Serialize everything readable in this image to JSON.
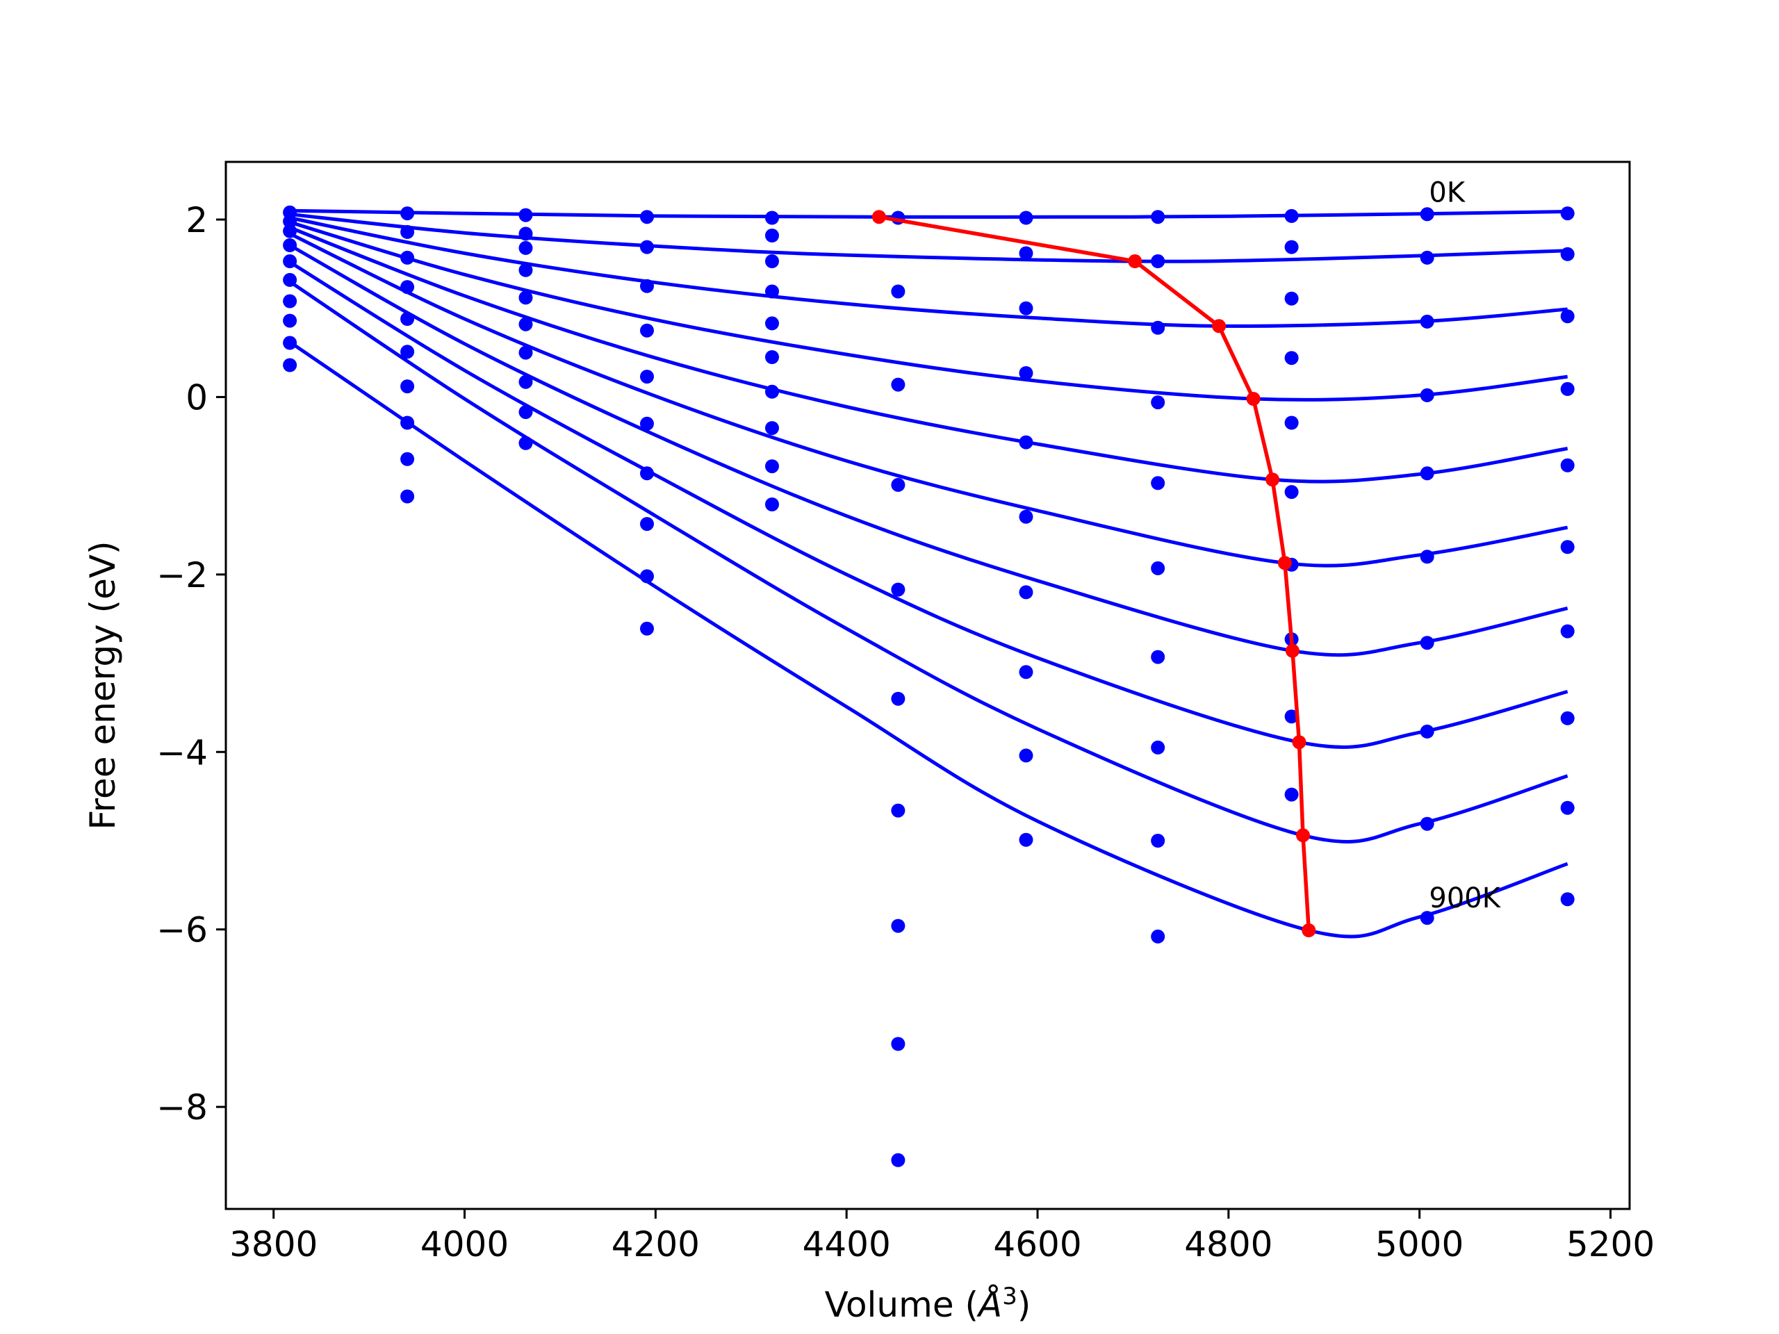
{
  "chart_data": {
    "type": "scatter",
    "title": "",
    "xlabel": "Volume (Å³)",
    "xlabel_main": "Volume (",
    "xlabel_unit": "Å",
    "xlabel_sup": "3",
    "xlabel_close": ")",
    "ylabel": "Free energy (eV)",
    "xlim": [
      3750,
      5220
    ],
    "ylim": [
      -9.15,
      2.65
    ],
    "xticks": [
      3800,
      4000,
      4200,
      4400,
      4600,
      4800,
      5000,
      5200
    ],
    "yticks": [
      -8,
      -6,
      -4,
      -2,
      0,
      2
    ],
    "xtick_labels": [
      "3800",
      "4000",
      "4200",
      "4400",
      "4600",
      "4800",
      "5000",
      "5200"
    ],
    "ytick_labels": [
      "−8",
      "−6",
      "−4",
      "−2",
      "0",
      "2"
    ],
    "grid": false,
    "annotations": [
      {
        "text": "0K",
        "x": 5010,
        "y": 2.2
      },
      {
        "text": "900K",
        "x": 5010,
        "y": -5.75
      }
    ],
    "colors": {
      "fit": "#0000ff",
      "points": "#0000ff",
      "minimum": "#ff0000"
    },
    "volumes": [
      3817,
      3940,
      4064,
      4191,
      4322,
      4454,
      4588,
      4726,
      4866,
      5008,
      5155
    ],
    "points": [
      [
        2.08,
        2.07,
        2.05,
        2.03,
        2.02,
        2.02,
        2.02,
        2.03,
        2.04,
        2.06,
        2.07
      ],
      [
        1.98,
        1.86,
        1.84,
        1.69,
        1.82,
        1.19,
        1.62,
        1.53,
        1.69,
        1.57,
        1.61
      ],
      [
        1.87,
        1.57,
        1.68,
        1.25,
        1.53,
        0.14,
        1.0,
        0.78,
        1.11,
        0.85,
        0.91
      ],
      [
        1.71,
        1.24,
        1.43,
        0.75,
        1.19,
        -0.99,
        0.27,
        -0.06,
        0.44,
        0.02,
        0.09
      ],
      [
        1.53,
        0.88,
        1.12,
        0.23,
        0.83,
        -2.17,
        -0.51,
        -0.97,
        -0.29,
        -0.86,
        -0.77
      ],
      [
        1.32,
        0.51,
        0.82,
        -0.3,
        0.45,
        -3.4,
        -1.35,
        -1.93,
        -1.07,
        -1.8,
        -1.69
      ],
      [
        1.08,
        0.12,
        0.5,
        -0.86,
        0.06,
        -4.66,
        -2.2,
        -2.93,
        -1.89,
        -2.77,
        -2.64
      ],
      [
        0.86,
        -0.29,
        0.17,
        -1.43,
        -0.35,
        -5.96,
        -3.1,
        -3.95,
        -2.73,
        -3.77,
        -3.62
      ],
      [
        0.61,
        -0.7,
        -0.17,
        -2.02,
        -0.78,
        -7.29,
        -4.04,
        -5.0,
        -3.6,
        -4.81,
        -4.63
      ],
      [
        0.36,
        -1.12,
        -0.52,
        -2.61,
        -1.21,
        -8.6,
        -4.99,
        -6.08,
        -4.48,
        -5.87,
        -5.66
      ]
    ],
    "series": [
      {
        "x": [
          3817,
          4000,
          4200,
          4434,
          4700,
          4900,
          5155
        ],
        "y": [
          2.1,
          2.07,
          2.04,
          2.03,
          2.03,
          2.05,
          2.09
        ]
      },
      {
        "x": [
          3817,
          4000,
          4200,
          4400,
          4702,
          4900,
          5155
        ],
        "y": [
          2.06,
          1.85,
          1.7,
          1.6,
          1.53,
          1.56,
          1.65
        ]
      },
      {
        "x": [
          3817,
          4000,
          4200,
          4400,
          4600,
          4790,
          5000,
          5155
        ],
        "y": [
          2.02,
          1.62,
          1.29,
          1.05,
          0.89,
          0.8,
          0.85,
          0.99
        ]
      },
      {
        "x": [
          3817,
          4000,
          4200,
          4400,
          4600,
          4826,
          5000,
          5155
        ],
        "y": [
          1.97,
          1.38,
          0.87,
          0.48,
          0.18,
          -0.02,
          0.02,
          0.23
        ]
      },
      {
        "x": [
          3817,
          4000,
          4200,
          4400,
          4600,
          4846,
          5000,
          5155
        ],
        "y": [
          1.91,
          1.14,
          0.44,
          -0.11,
          -0.53,
          -0.93,
          -0.87,
          -0.58
        ]
      },
      {
        "x": [
          3817,
          4000,
          4200,
          4400,
          4600,
          4859,
          5000,
          5155
        ],
        "y": [
          1.84,
          0.88,
          0.01,
          -0.72,
          -1.28,
          -1.87,
          -1.78,
          -1.47
        ]
      },
      {
        "x": [
          3817,
          4000,
          4200,
          4400,
          4600,
          4867,
          5000,
          5155
        ],
        "y": [
          1.71,
          0.6,
          -0.43,
          -1.34,
          -2.07,
          -2.86,
          -2.77,
          -2.38
        ]
      },
      {
        "x": [
          3817,
          4000,
          4200,
          4400,
          4600,
          4874,
          5000,
          5155
        ],
        "y": [
          1.52,
          0.3,
          -0.88,
          -2.0,
          -2.94,
          -3.89,
          -3.78,
          -3.32
        ]
      },
      {
        "x": [
          3817,
          4000,
          4200,
          4400,
          4600,
          4878,
          5000,
          5155
        ],
        "y": [
          1.3,
          -0.02,
          -1.34,
          -2.61,
          -3.74,
          -4.94,
          -4.81,
          -4.27
        ]
      },
      {
        "x": [
          3817,
          4000,
          4200,
          4400,
          4600,
          4884,
          5000,
          5155
        ],
        "y": [
          0.62,
          -0.72,
          -2.14,
          -3.49,
          -4.78,
          -6.01,
          -5.86,
          -5.26
        ]
      }
    ],
    "minima": {
      "x": [
        4434,
        4702,
        4790,
        4826,
        4846,
        4859,
        4867,
        4874,
        4878,
        4884
      ],
      "y": [
        2.03,
        1.53,
        0.8,
        -0.02,
        -0.93,
        -1.87,
        -2.86,
        -3.89,
        -4.94,
        -6.01
      ]
    }
  }
}
